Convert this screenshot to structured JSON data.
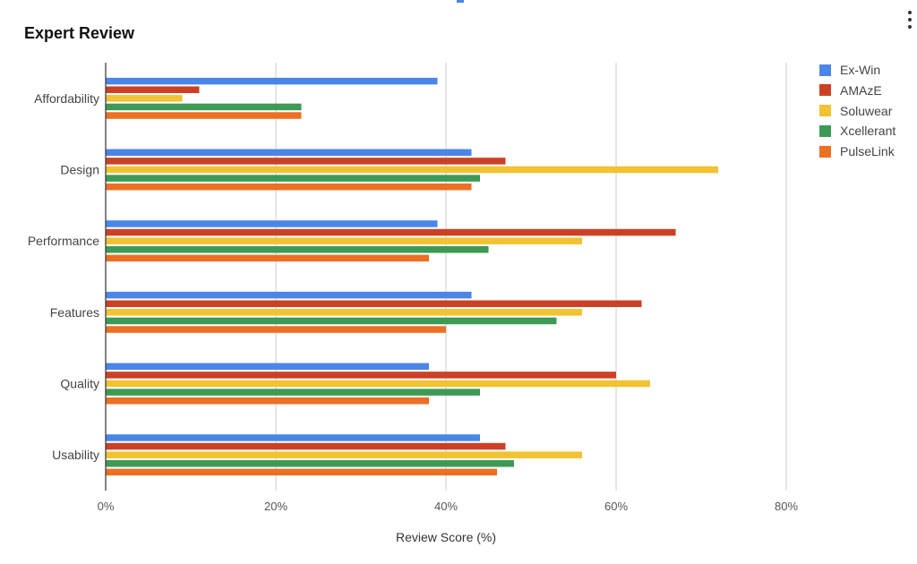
{
  "menu": {
    "icon": "more-vert-icon"
  },
  "chart_data": {
    "type": "bar",
    "orientation": "horizontal",
    "title": "Expert Review",
    "xlabel": "Review Score (%)",
    "ylabel": "",
    "xlim": [
      0,
      80
    ],
    "x_ticks": [
      "0%",
      "20%",
      "40%",
      "60%",
      "80%"
    ],
    "grid": true,
    "legend_position": "right",
    "categories": [
      "Affordability",
      "Design",
      "Performance",
      "Features",
      "Quality",
      "Usability"
    ],
    "series": [
      {
        "name": "Ex-Win",
        "color": "#4a86e8",
        "values": [
          39,
          43,
          39,
          43,
          38,
          44
        ]
      },
      {
        "name": "AMAzE",
        "color": "#cc4125",
        "values": [
          11,
          47,
          67,
          63,
          60,
          47
        ]
      },
      {
        "name": "Soluwear",
        "color": "#f1c232",
        "values": [
          9,
          72,
          56,
          56,
          64,
          56
        ]
      },
      {
        "name": "Xcellerant",
        "color": "#3d9a55",
        "values": [
          23,
          44,
          45,
          53,
          44,
          48
        ]
      },
      {
        "name": "PulseLink",
        "color": "#ec6f24",
        "values": [
          23,
          43,
          38,
          40,
          38,
          46
        ]
      }
    ]
  }
}
